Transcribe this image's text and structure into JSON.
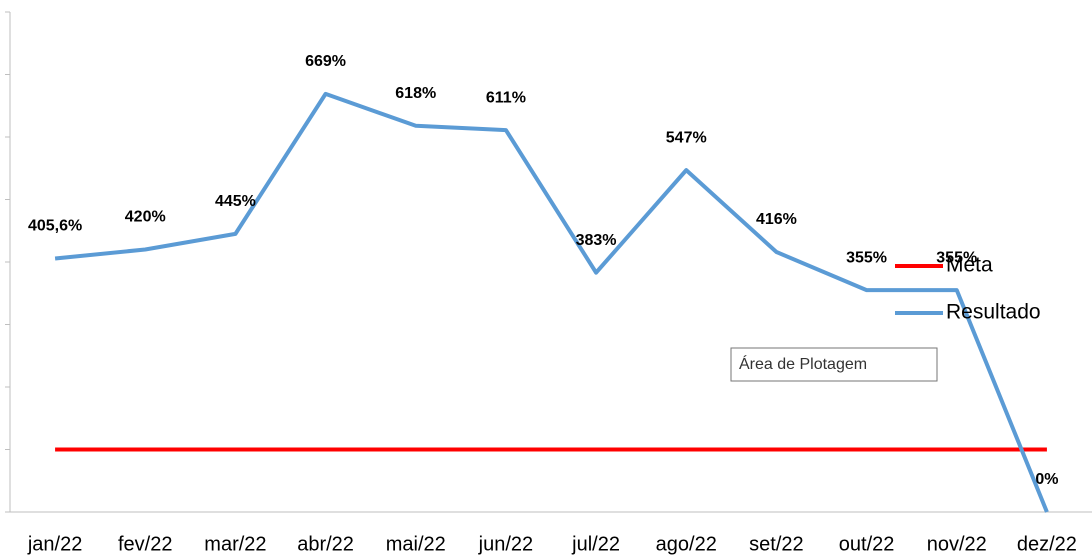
{
  "chart_data": {
    "type": "line",
    "categories": [
      "jan/22",
      "fev/22",
      "mar/22",
      "abr/22",
      "mai/22",
      "jun/22",
      "jul/22",
      "ago/22",
      "set/22",
      "out/22",
      "nov/22",
      "dez/22"
    ],
    "series": [
      {
        "name": "Meta",
        "color": "#ff0000",
        "values": [
          100,
          100,
          100,
          100,
          100,
          100,
          100,
          100,
          100,
          100,
          100,
          100
        ]
      },
      {
        "name": "Resultado",
        "color": "#5b9bd5",
        "values": [
          405.6,
          420,
          445,
          669,
          618,
          611,
          383,
          547,
          416,
          355,
          355,
          0
        ],
        "value_labels": [
          "405,6%",
          "420%",
          "445%",
          "669%",
          "618%",
          "611%",
          "383%",
          "547%",
          "416%",
          "355%",
          "355%",
          "0%"
        ]
      }
    ],
    "ylim": [
      0,
      800
    ],
    "yticks": [
      0,
      100,
      200,
      300,
      400,
      500,
      600,
      700,
      800
    ],
    "legend": "right",
    "tooltip": "Área de Plotagem"
  }
}
